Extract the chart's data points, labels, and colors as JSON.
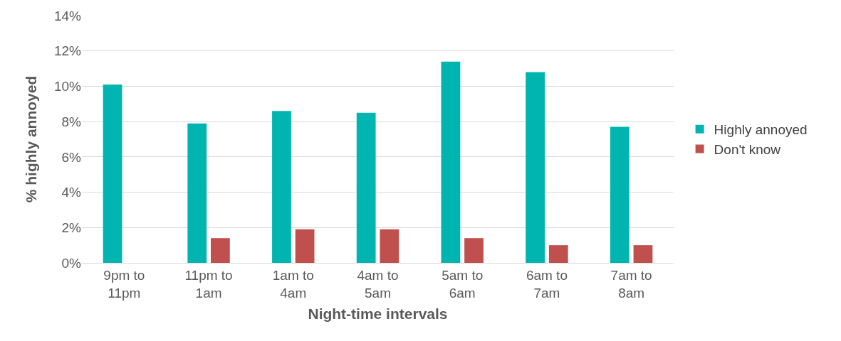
{
  "chart_data": {
    "type": "bar",
    "xlabel": "Night-time intervals",
    "ylabel": "% highly annoyed",
    "categories": [
      "9pm to 11pm",
      "11pm to 1am",
      "1am to 4am",
      "4am to 5am",
      "5am to 6am",
      "6am to 7am",
      "7am to 8am"
    ],
    "series": [
      {
        "name": "Highly annoyed",
        "color": "#00b5b0",
        "values": [
          10.1,
          7.9,
          8.6,
          8.5,
          11.4,
          10.8,
          7.7
        ]
      },
      {
        "name": "Don't know",
        "color": "#c0504d",
        "values": [
          0,
          1.4,
          1.9,
          1.9,
          1.4,
          1.0,
          1.0
        ]
      }
    ],
    "ylim": [
      0,
      14
    ],
    "yticks": [
      {
        "value": 0,
        "label": "0%"
      },
      {
        "value": 2,
        "label": "2%"
      },
      {
        "value": 4,
        "label": "4%"
      },
      {
        "value": 6,
        "label": "6%"
      },
      {
        "value": 8,
        "label": "8%"
      },
      {
        "value": 10,
        "label": "10%"
      },
      {
        "value": 12,
        "label": "12%"
      },
      {
        "value": 14,
        "label": "14%"
      }
    ],
    "grid": "y",
    "legend": "right"
  }
}
